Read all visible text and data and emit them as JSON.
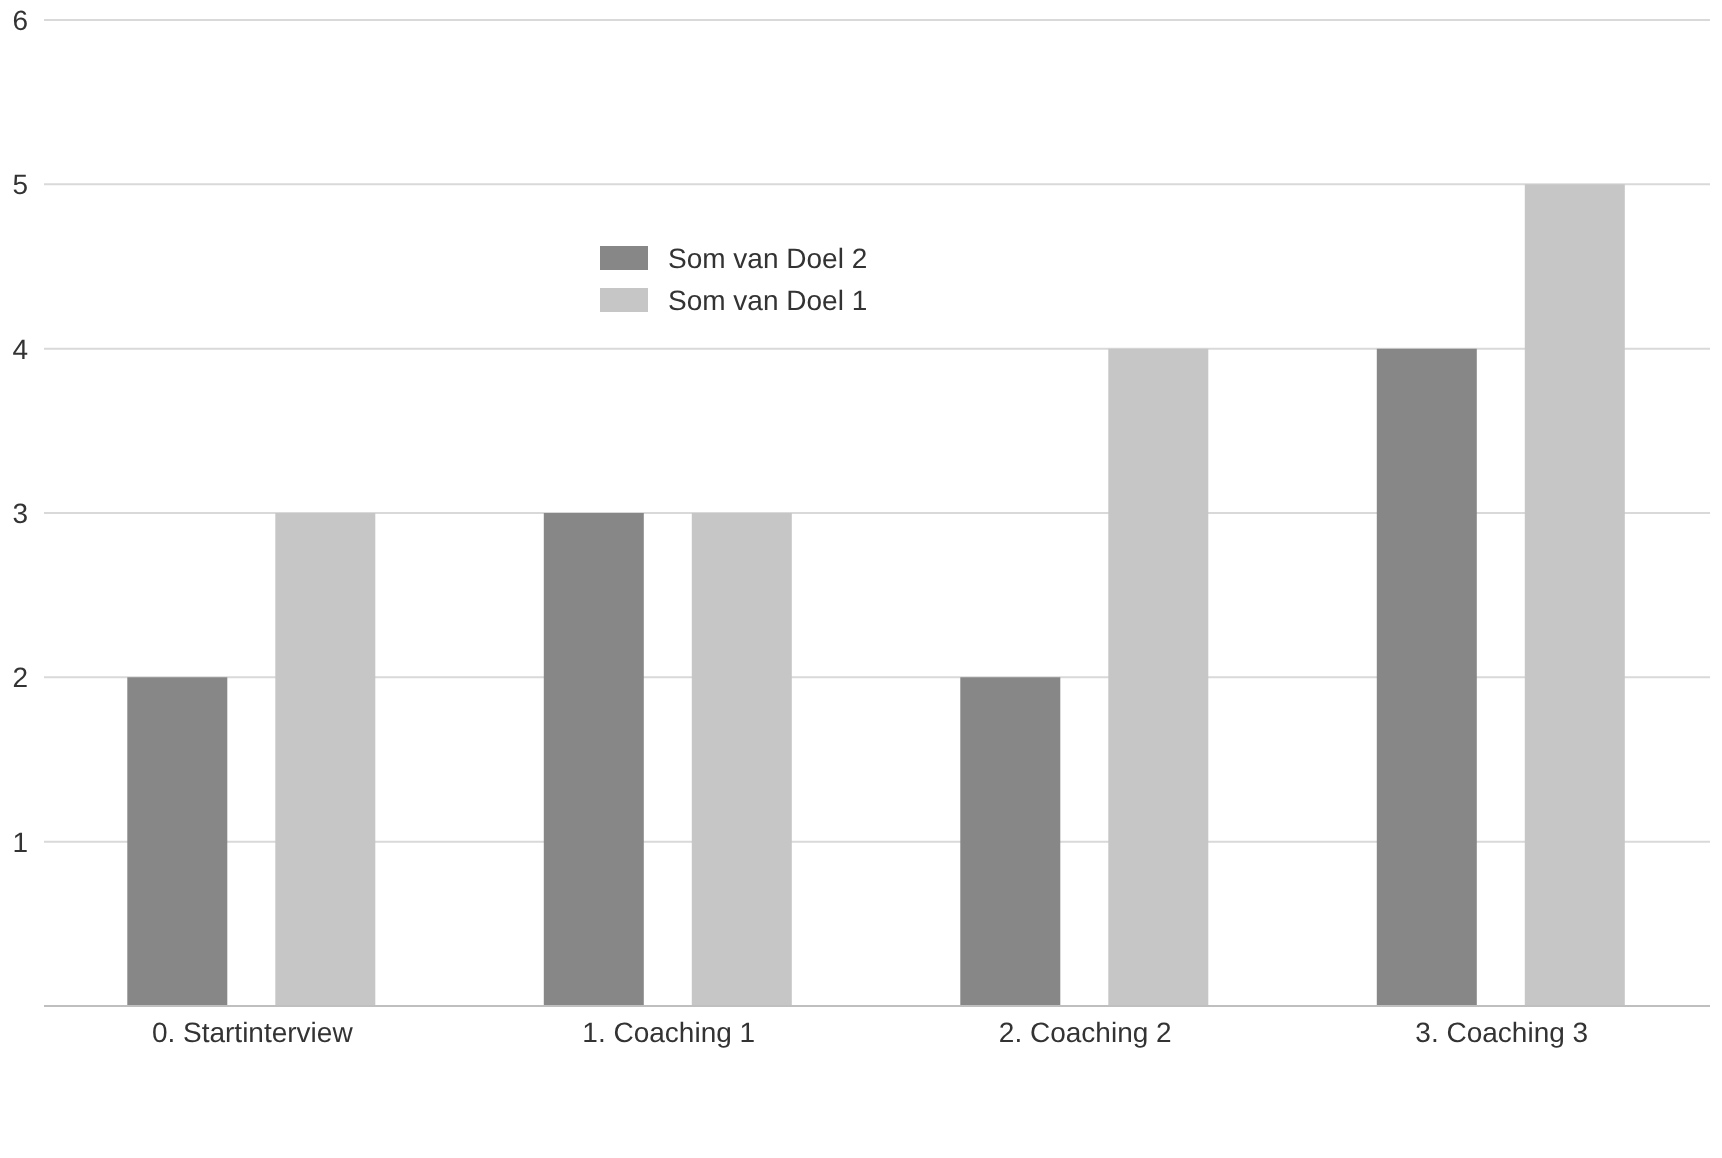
{
  "chart_data": {
    "type": "bar",
    "categories": [
      "0. Startinterview",
      "1. Coaching 1",
      "2. Coaching 2",
      "3. Coaching 3"
    ],
    "series": [
      {
        "name": "Som van Doel 2",
        "color": "#878787",
        "values": [
          2,
          3,
          2,
          4
        ]
      },
      {
        "name": "Som van Doel 1",
        "color": "#c6c6c6",
        "values": [
          3,
          3,
          4,
          5
        ]
      }
    ],
    "ylim": [
      0,
      6
    ],
    "yticks": [
      1,
      2,
      3,
      4,
      5,
      6
    ],
    "grid": "y",
    "legend": "top"
  }
}
